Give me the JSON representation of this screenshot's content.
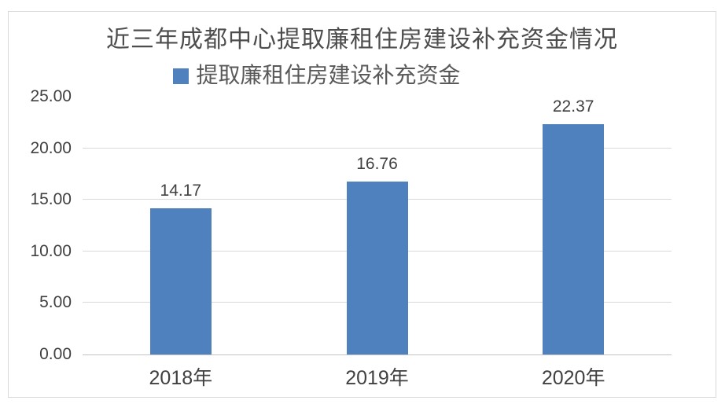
{
  "chart_data": {
    "type": "bar",
    "title": "近三年成都中心提取廉租住房建设补充资金情况",
    "legend": {
      "label": "提取廉租住房建设补充资金",
      "position": "top",
      "marker_color": "#4e81bd"
    },
    "categories": [
      "2018年",
      "2019年",
      "2020年"
    ],
    "series": [
      {
        "name": "提取廉租住房建设补充资金",
        "values": [
          14.17,
          16.76,
          22.37
        ]
      }
    ],
    "data_labels": [
      "14.17",
      "16.76",
      "22.37"
    ],
    "xlabel": "",
    "ylabel": "",
    "ylim": [
      0,
      25
    ],
    "ytick_step": 5,
    "ytick_labels": [
      "0.00",
      "5.00",
      "10.00",
      "15.00",
      "20.00",
      "25.00"
    ],
    "grid": true,
    "gridline_values": [
      5,
      10,
      15,
      20
    ],
    "colors": {
      "bar": "#4e81bd",
      "gridline": "#d9d9d9",
      "axis_line": "#c3c3c3",
      "text": "#404040",
      "title_text": "#4d4d4d",
      "legend_text": "#595959",
      "frame_border": "#d9d9d9",
      "background": "#ffffff"
    }
  }
}
